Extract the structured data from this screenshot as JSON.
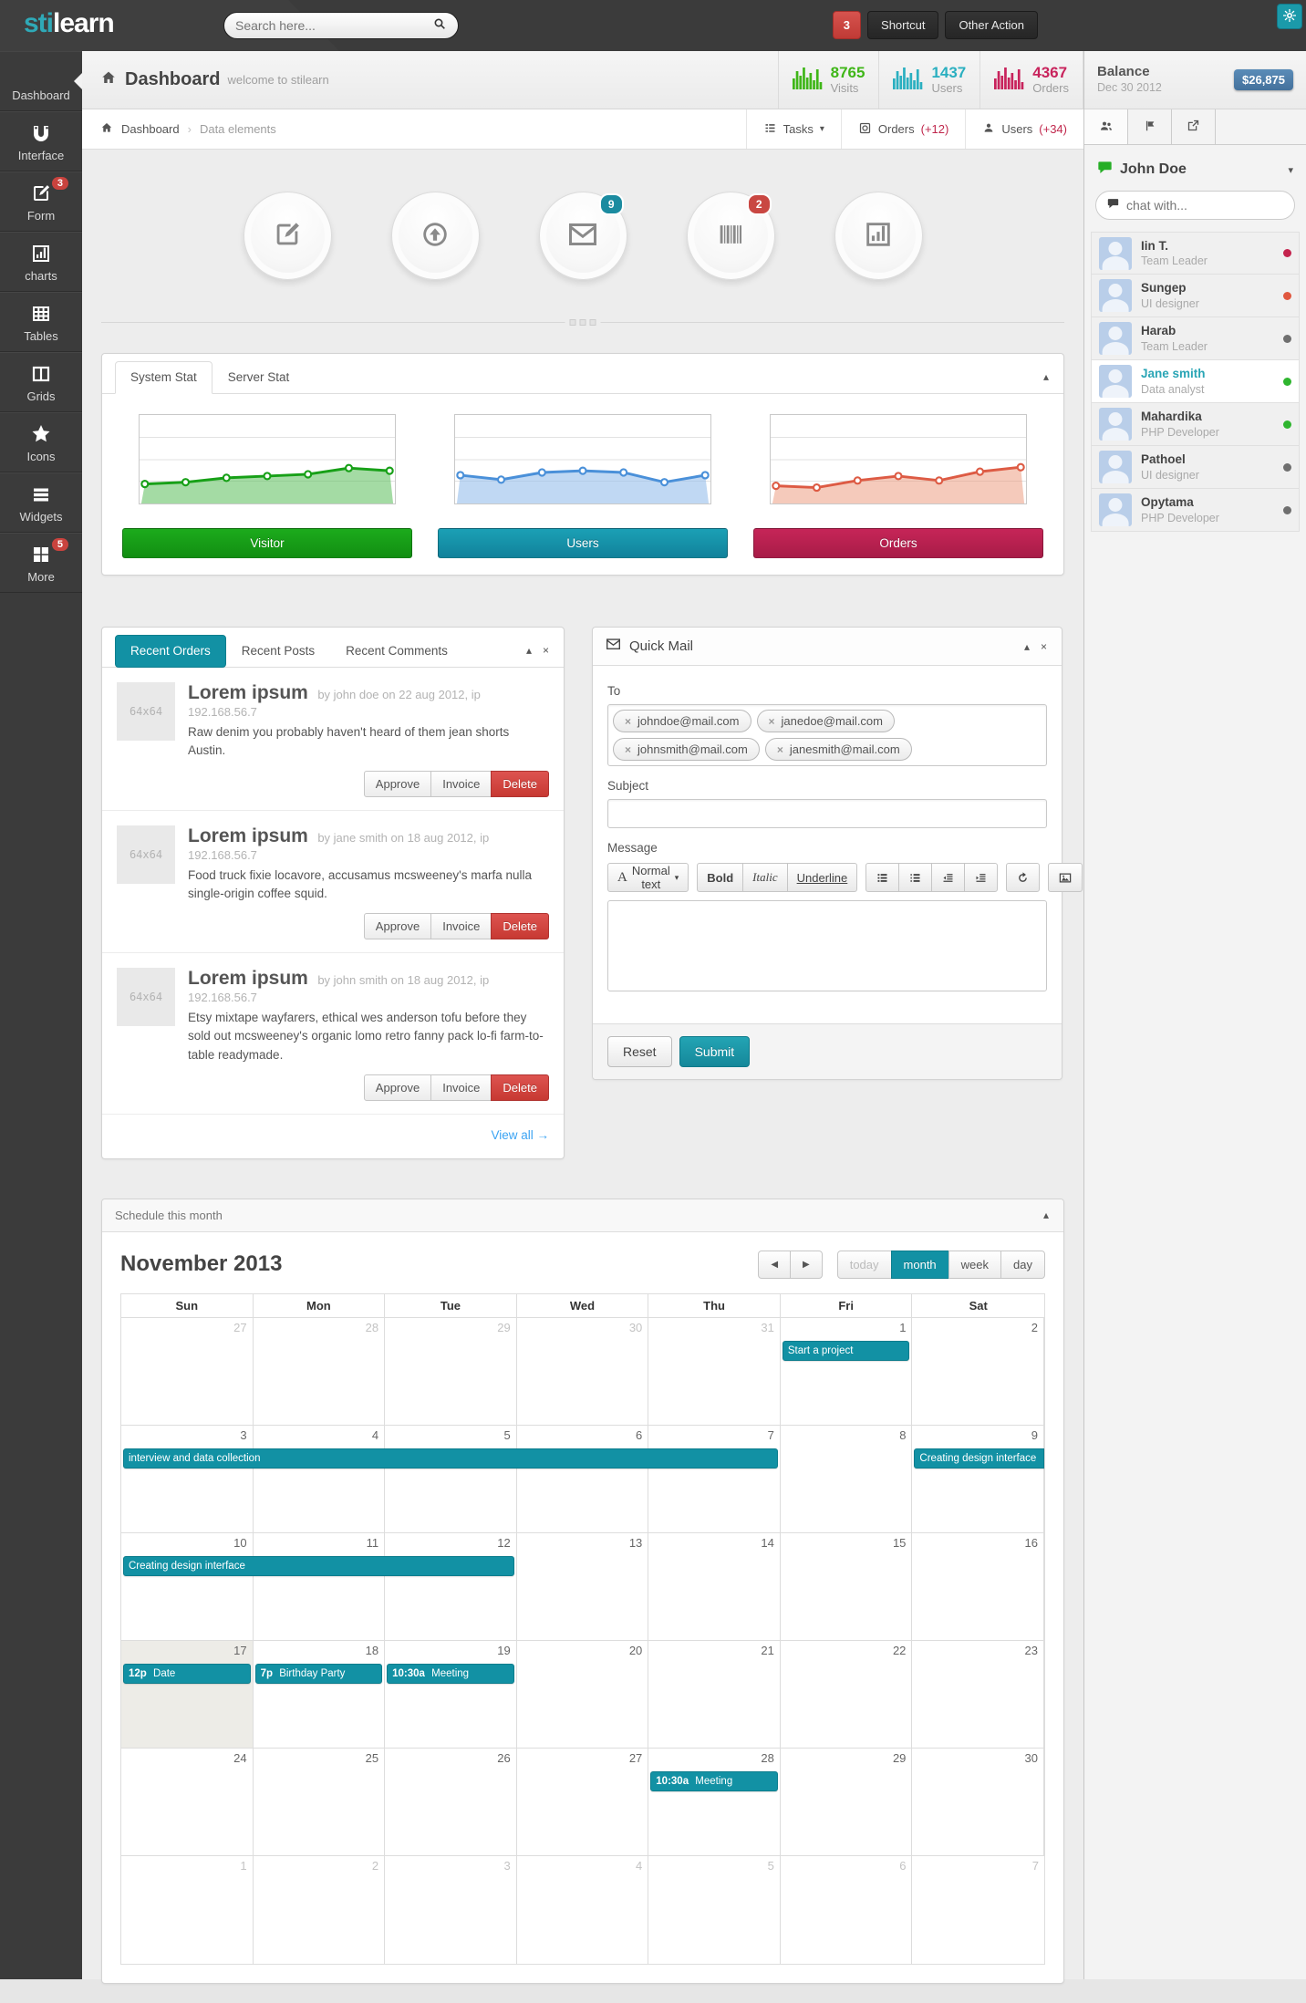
{
  "icons_glyphs": {
    "caret_up": "▴",
    "caret_down": "▾",
    "close": "×",
    "prev": "◀",
    "next": "▶",
    "crumb_sep": "›",
    "remove": "×"
  },
  "navbar": {
    "logo": {
      "prefix": "sti",
      "suffix": "learn"
    },
    "search_placeholder": "Search here...",
    "notification_count": "3",
    "buttons": [
      {
        "label": "Shortcut"
      },
      {
        "label": "Other Action"
      }
    ]
  },
  "sidebar": {
    "items": [
      {
        "id": "dashboard",
        "label": "Dashboard",
        "active": true
      },
      {
        "id": "interface",
        "label": "Interface"
      },
      {
        "id": "form",
        "label": "Form",
        "badge": "3"
      },
      {
        "id": "charts",
        "label": "charts"
      },
      {
        "id": "tables",
        "label": "Tables"
      },
      {
        "id": "grids",
        "label": "Grids"
      },
      {
        "id": "icons",
        "label": "Icons"
      },
      {
        "id": "widgets",
        "label": "Widgets"
      },
      {
        "id": "more",
        "label": "More",
        "badge": "5"
      }
    ]
  },
  "header": {
    "title": "Dashboard",
    "subtitle": "welcome to stilearn",
    "stats": [
      {
        "value": "8765",
        "label": "Visits",
        "color": "#3fb618"
      },
      {
        "value": "1437",
        "label": "Users",
        "color": "#2aafc0"
      },
      {
        "value": "4367",
        "label": "Orders",
        "color": "#c8235c"
      }
    ]
  },
  "breadcrumb": {
    "items": [
      "Dashboard",
      "Data elements"
    ],
    "actions": [
      {
        "icon": "tasks-icon",
        "label": "Tasks",
        "caret": true
      },
      {
        "icon": "orders-icon",
        "label": "Orders",
        "extra": "(+12)"
      },
      {
        "icon": "users-icon",
        "label": "Users",
        "extra": "(+34)"
      }
    ]
  },
  "quick_circles": [
    {
      "icon": "compose"
    },
    {
      "icon": "upload"
    },
    {
      "icon": "mail",
      "badge": "9",
      "badge_color": "#1b8ba0"
    },
    {
      "icon": "barcode",
      "badge": "2",
      "badge_color": "#c94742"
    },
    {
      "icon": "chart"
    }
  ],
  "stats_panel": {
    "tabs": [
      "System Stat",
      "Server Stat"
    ]
  },
  "chart_data": [
    {
      "type": "area",
      "name": "Visitor",
      "line_color": "#17a017",
      "fill_color": "rgba(90,190,90,0.55)",
      "button_colors": [
        "#1cab1c",
        "#128e12"
      ],
      "x": [
        1,
        2,
        3,
        4,
        5,
        6,
        7
      ],
      "values": [
        22,
        24,
        29,
        31,
        33,
        40,
        37
      ],
      "ylim": [
        0,
        100
      ],
      "grid": true,
      "legend_position": "button-below"
    },
    {
      "type": "area",
      "name": "Users",
      "line_color": "#4a90d9",
      "fill_color": "rgba(150,190,235,0.6)",
      "button_colors": [
        "#1ba0b5",
        "#11829b"
      ],
      "x": [
        1,
        2,
        3,
        4,
        5,
        6,
        7
      ],
      "values": [
        32,
        27,
        35,
        37,
        35,
        24,
        32
      ],
      "ylim": [
        0,
        100
      ],
      "grid": true,
      "legend_position": "button-below"
    },
    {
      "type": "area",
      "name": "Orders",
      "line_color": "#dd5b44",
      "fill_color": "rgba(235,150,120,0.5)",
      "button_colors": [
        "#c62558",
        "#a81c47"
      ],
      "x": [
        1,
        2,
        3,
        4,
        5,
        6,
        7
      ],
      "values": [
        20,
        18,
        26,
        31,
        26,
        36,
        41
      ],
      "ylim": [
        0,
        100
      ],
      "grid": true,
      "legend_position": "button-below"
    }
  ],
  "recent_panel": {
    "tabs": [
      "Recent Orders",
      "Recent Posts",
      "Recent Comments"
    ],
    "thumb_label": "64x64",
    "items": [
      {
        "title": "Lorem ipsum",
        "meta": "by john doe on 22 aug 2012, ip 192.168.56.7",
        "body": "Raw denim you probably haven't heard of them jean shorts Austin.",
        "actions": [
          "Approve",
          "Invoice",
          "Delete"
        ]
      },
      {
        "title": "Lorem ipsum",
        "meta": "by jane smith on 18 aug 2012, ip 192.168.56.7",
        "body": "Food truck fixie locavore, accusamus mcsweeney's marfa nulla single-origin coffee squid.",
        "actions": [
          "Approve",
          "Invoice",
          "Delete"
        ]
      },
      {
        "title": "Lorem ipsum",
        "meta": "by john smith on 18 aug 2012, ip 192.168.56.7",
        "body": "Etsy mixtape wayfarers, ethical wes anderson tofu before they sold out mcsweeney's organic lomo retro fanny pack lo-fi farm-to-table readymade.",
        "actions": [
          "Approve",
          "Invoice",
          "Delete"
        ]
      }
    ],
    "view_all": "View all →"
  },
  "quick_mail": {
    "title": "Quick Mail",
    "to_label": "To",
    "recipients": [
      "johndoe@mail.com",
      "janedoe@mail.com",
      "johnsmith@mail.com",
      "janesmith@mail.com"
    ],
    "subject_label": "Subject",
    "message_label": "Message",
    "toolbar": {
      "font_letter": "A",
      "font": "Normal text",
      "bold": "Bold",
      "italic": "Italic",
      "underline": "Underline"
    },
    "reset_label": "Reset",
    "submit_label": "Submit"
  },
  "schedule": {
    "panel_title": "Schedule this month",
    "month_title": "November 2013",
    "views": [
      {
        "label": "today",
        "state": "disabled"
      },
      {
        "label": "month",
        "state": "active"
      },
      {
        "label": "week"
      },
      {
        "label": "day"
      }
    ],
    "day_headers": [
      "Sun",
      "Mon",
      "Tue",
      "Wed",
      "Thu",
      "Fri",
      "Sat"
    ],
    "weeks": [
      {
        "days": [
          {
            "n": 27,
            "muted": true
          },
          {
            "n": 28,
            "muted": true
          },
          {
            "n": 29,
            "muted": true
          },
          {
            "n": 30,
            "muted": true
          },
          {
            "n": 31,
            "muted": true
          },
          {
            "n": 1
          },
          {
            "n": 2
          }
        ],
        "events": [
          {
            "col": 5,
            "span": 1,
            "title": "Start a project"
          }
        ]
      },
      {
        "days": [
          {
            "n": 3
          },
          {
            "n": 4
          },
          {
            "n": 5
          },
          {
            "n": 6
          },
          {
            "n": 7
          },
          {
            "n": 8
          },
          {
            "n": 9
          }
        ],
        "events": [
          {
            "col": 0,
            "span": 5,
            "title": "interview and data collection"
          },
          {
            "col": 6,
            "span": 1,
            "title": "Creating design interface",
            "cont": true
          }
        ]
      },
      {
        "days": [
          {
            "n": 10
          },
          {
            "n": 11
          },
          {
            "n": 12
          },
          {
            "n": 13
          },
          {
            "n": 14
          },
          {
            "n": 15
          },
          {
            "n": 16
          }
        ],
        "events": [
          {
            "col": 0,
            "span": 3,
            "title": "Creating design interface"
          }
        ]
      },
      {
        "days": [
          {
            "n": 17,
            "today": true
          },
          {
            "n": 18
          },
          {
            "n": 19
          },
          {
            "n": 20
          },
          {
            "n": 21
          },
          {
            "n": 22
          },
          {
            "n": 23
          }
        ],
        "events": [
          {
            "col": 0,
            "span": 1,
            "time": "12p",
            "title": "Date"
          },
          {
            "col": 1,
            "span": 1,
            "time": "7p",
            "title": "Birthday Party"
          },
          {
            "col": 2,
            "span": 1,
            "time": "10:30a",
            "title": "Meeting"
          }
        ]
      },
      {
        "days": [
          {
            "n": 24
          },
          {
            "n": 25
          },
          {
            "n": 26
          },
          {
            "n": 27
          },
          {
            "n": 28
          },
          {
            "n": 29
          },
          {
            "n": 30
          }
        ],
        "events": [
          {
            "col": 4,
            "span": 1,
            "time": "10:30a",
            "title": "Meeting"
          }
        ]
      },
      {
        "days": [
          {
            "n": 1,
            "muted": true
          },
          {
            "n": 2,
            "muted": true
          },
          {
            "n": 3,
            "muted": true
          },
          {
            "n": 4,
            "muted": true
          },
          {
            "n": 5,
            "muted": true
          },
          {
            "n": 6,
            "muted": true
          },
          {
            "n": 7,
            "muted": true
          }
        ],
        "events": []
      }
    ]
  },
  "chat_sidebar": {
    "balance_title": "Balance",
    "balance_date": "Dec 30 2012",
    "balance_amount": "$26,875",
    "user_name": "John Doe",
    "chat_placeholder": "chat with...",
    "contacts": [
      {
        "name": "Iin T.",
        "role": "Team Leader",
        "status_color": "#c4244e"
      },
      {
        "name": "Sungep",
        "role": "UI designer",
        "status_color": "#e0573f"
      },
      {
        "name": "Harab",
        "role": "Team Leader",
        "status_color": "#6f6f6f"
      },
      {
        "name": "Jane smith",
        "role": "Data analyst",
        "status_color": "#2fb52f",
        "highlight": true
      },
      {
        "name": "Mahardika",
        "role": "PHP Developer",
        "status_color": "#2fb52f"
      },
      {
        "name": "Pathoel",
        "role": "UI designer",
        "status_color": "#6f6f6f"
      },
      {
        "name": "Opytama",
        "role": "PHP Developer",
        "status_color": "#6f6f6f"
      }
    ]
  }
}
